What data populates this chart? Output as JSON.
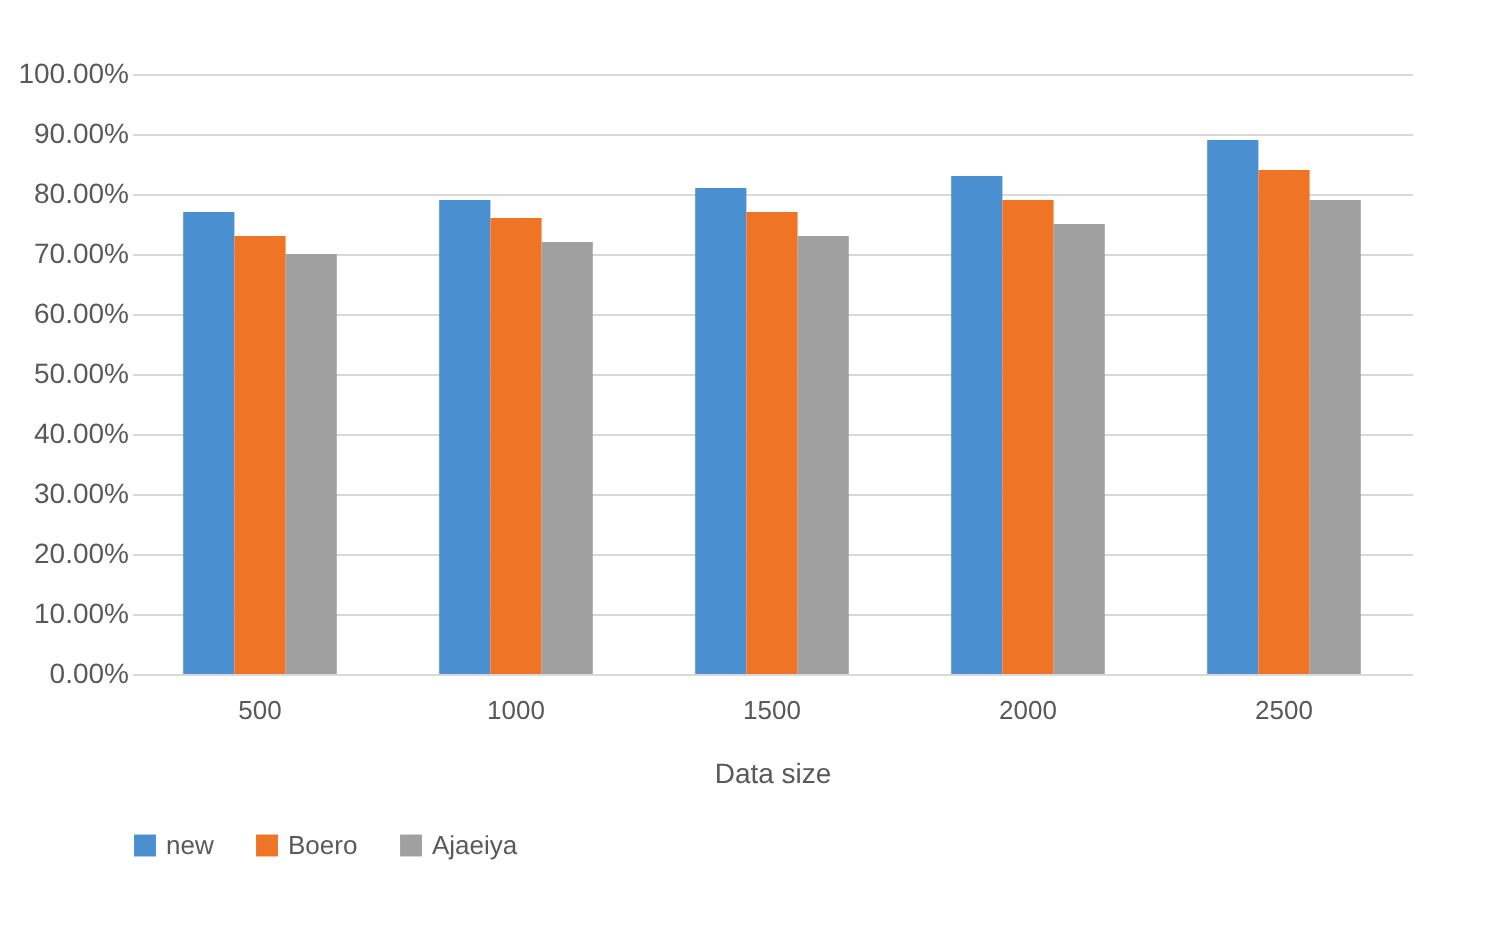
{
  "chart_data": {
    "type": "bar",
    "xlabel": "Data size",
    "categories": [
      "500",
      "1000",
      "1500",
      "2000",
      "2500"
    ],
    "series": [
      {
        "name": "new",
        "color": "#4a8fd0",
        "values": [
          77,
          79,
          81,
          83,
          89
        ]
      },
      {
        "name": "Boero",
        "color": "#ef7426",
        "values": [
          73,
          76,
          77,
          79,
          84
        ]
      },
      {
        "name": "Ajaeiya",
        "color": "#a0a0a0",
        "values": [
          70,
          72,
          73,
          75,
          79
        ]
      }
    ],
    "ylim": [
      0,
      100
    ],
    "yticks": [
      {
        "value": 0,
        "label": "0.00%"
      },
      {
        "value": 10,
        "label": "10.00%"
      },
      {
        "value": 20,
        "label": "20.00%"
      },
      {
        "value": 30,
        "label": "30.00%"
      },
      {
        "value": 40,
        "label": "40.00%"
      },
      {
        "value": 50,
        "label": "50.00%"
      },
      {
        "value": 60,
        "label": "60.00%"
      },
      {
        "value": 70,
        "label": "70.00%"
      },
      {
        "value": 80,
        "label": "80.00%"
      },
      {
        "value": 90,
        "label": "90.00%"
      },
      {
        "value": 100,
        "label": "100.00%"
      }
    ],
    "grid": "y",
    "legend": "bottom"
  }
}
